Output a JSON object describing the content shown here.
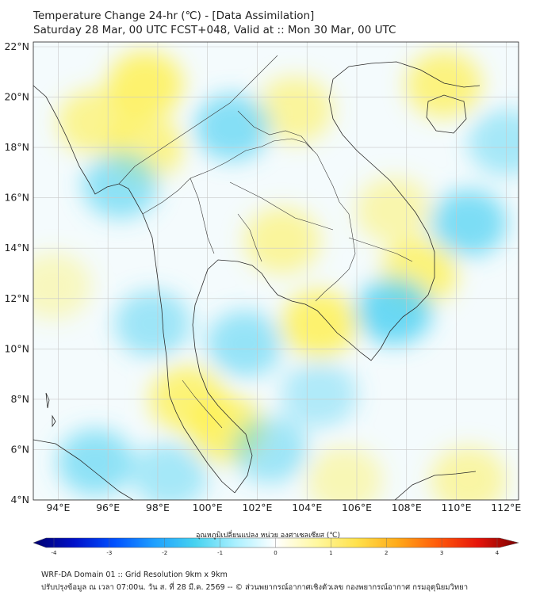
{
  "header": {
    "title_line1": "Temperature Change 24-hr (℃) - [Data Assimilation]",
    "title_line2": "Saturday 28 Mar, 00 UTC FCST+048, Valid at :: Mon 30 Mar, 00 UTC"
  },
  "map": {
    "lat_ticks": [
      "22°N",
      "20°N",
      "18°N",
      "16°N",
      "14°N",
      "12°N",
      "10°N",
      "8°N",
      "6°N",
      "4°N"
    ],
    "lon_ticks": [
      "94°E",
      "96°E",
      "98°E",
      "100°E",
      "102°E",
      "104°E",
      "106°E",
      "108°E",
      "110°E",
      "112°E"
    ],
    "lon_range": [
      93,
      112.5
    ],
    "lat_range": [
      4,
      22.2
    ],
    "anomaly_cells": [
      {
        "lon": 97.5,
        "lat": 20.5,
        "value": 1.6
      },
      {
        "lon": 95.5,
        "lat": 19.0,
        "value": 1.2
      },
      {
        "lon": 97.5,
        "lat": 18.0,
        "value": 1.3
      },
      {
        "lon": 103.5,
        "lat": 19.5,
        "value": 1.1
      },
      {
        "lon": 109.5,
        "lat": 20.5,
        "value": 1.4
      },
      {
        "lon": 107.5,
        "lat": 15.5,
        "value": 0.9
      },
      {
        "lon": 108.5,
        "lat": 13.0,
        "value": 1.5
      },
      {
        "lon": 104.5,
        "lat": 11.0,
        "value": 1.6
      },
      {
        "lon": 103.0,
        "lat": 14.3,
        "value": 1.1
      },
      {
        "lon": 99.2,
        "lat": 8.0,
        "value": 1.5
      },
      {
        "lon": 100.8,
        "lat": 6.8,
        "value": 1.6
      },
      {
        "lon": 105.5,
        "lat": 4.8,
        "value": 0.8
      },
      {
        "lon": 110.5,
        "lat": 4.8,
        "value": 1.0
      },
      {
        "lon": 93.8,
        "lat": 12.5,
        "value": 0.7
      },
      {
        "lon": 101.0,
        "lat": 18.8,
        "value": -1.3
      },
      {
        "lon": 96.5,
        "lat": 16.5,
        "value": -1.2
      },
      {
        "lon": 110.5,
        "lat": 15.0,
        "value": -1.4
      },
      {
        "lon": 107.5,
        "lat": 11.5,
        "value": -1.6
      },
      {
        "lon": 101.5,
        "lat": 10.2,
        "value": -1.1
      },
      {
        "lon": 95.5,
        "lat": 5.5,
        "value": -1.2
      },
      {
        "lon": 102.5,
        "lat": 6.0,
        "value": -1.0
      },
      {
        "lon": 98.5,
        "lat": 5.0,
        "value": -0.9
      },
      {
        "lon": 104.5,
        "lat": 8.2,
        "value": -0.8
      },
      {
        "lon": 112.0,
        "lat": 18.2,
        "value": -0.9
      },
      {
        "lon": 97.8,
        "lat": 11.0,
        "value": -1.0
      }
    ]
  },
  "colorbar": {
    "label": "อุณหภูมิเปลี่ยนแปลง หน่วย องศาเซลเซียส (℃)",
    "ticks": [
      "-4",
      "-3",
      "-2",
      "-1",
      "0",
      "1",
      "2",
      "3",
      "4"
    ],
    "min": -4,
    "max": 4,
    "colors": [
      "#00006e",
      "#0010c8",
      "#0050ff",
      "#1ea0ff",
      "#46d2f0",
      "#aaf0ff",
      "#ffffff",
      "#fff8a0",
      "#ffe14b",
      "#ffaa19",
      "#ff5a0a",
      "#e6140a",
      "#780000"
    ]
  },
  "footer": {
    "line1": "WRF-DA Domain 01 :: Grid Resolution 9km x 9km",
    "line2": "ปรับปรุงข้อมูล ณ เวลา 07:00น. วัน ส. ที่ 28 มี.ค. 2569 -- © ส่วนพยากรณ์อากาศเชิงตัวเลข กองพยากรณ์อากาศ กรมอุตุนิยมวิทยา"
  }
}
